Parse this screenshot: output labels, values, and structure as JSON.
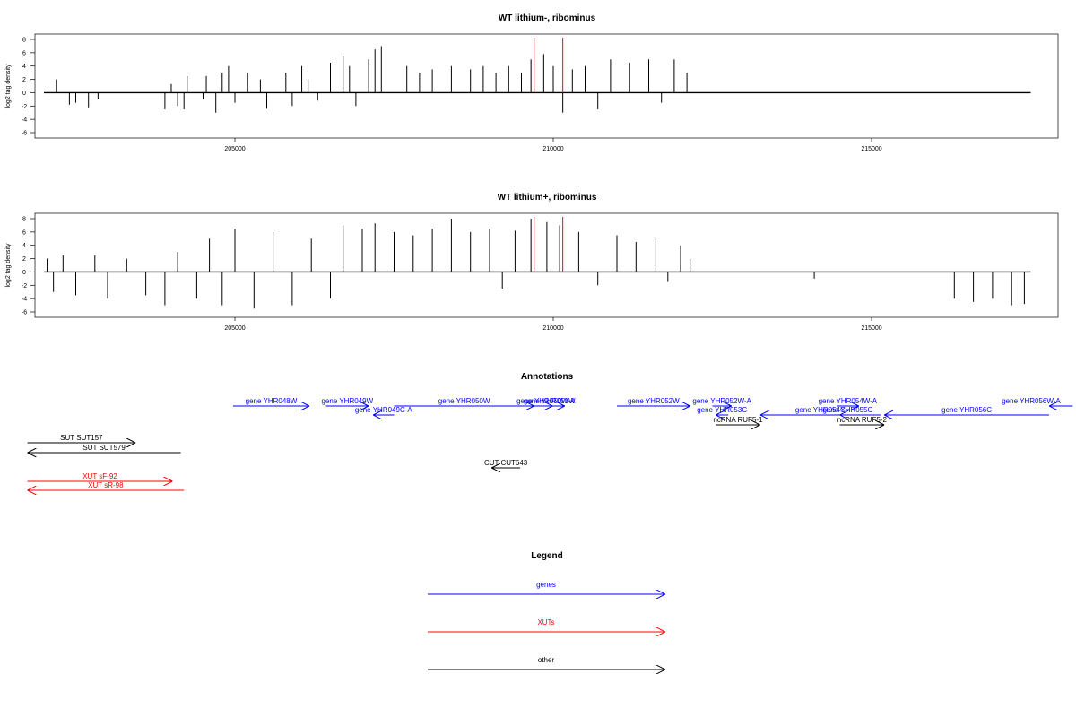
{
  "colors": {
    "gene": "#0000ff",
    "xut": "#ff0000",
    "other": "#000000",
    "highlight": "#ff0000"
  },
  "panel_top": {
    "title": "WT lithium-, ribominus",
    "ylabel": "log2 tag density",
    "yticks": [
      "8",
      "6",
      "4",
      "2",
      "0",
      "-2",
      "-4",
      "-6"
    ],
    "xticks": [
      "205000",
      "210000",
      "215000"
    ]
  },
  "panel_bottom": {
    "title": "WT lithium+, ribominus",
    "ylabel": "log2 tag density",
    "yticks": [
      "8",
      "6",
      "4",
      "2",
      "0",
      "-2",
      "-4",
      "-6"
    ],
    "xticks": [
      "205000",
      "210000",
      "215000"
    ]
  },
  "annotations": {
    "title": "Annotations",
    "items": [
      {
        "label": "gene YHR048W",
        "start": 204970,
        "end": 206170,
        "dir": "+",
        "type": "gene"
      },
      {
        "label": "gene YHR049W",
        "start": 206430,
        "end": 207100,
        "dir": "+",
        "type": "gene"
      },
      {
        "label": "gene YHR049C-A",
        "start": 207170,
        "end": 207500,
        "dir": "-",
        "type": "gene"
      },
      {
        "label": "gene YHR050W",
        "start": 207500,
        "end": 209700,
        "dir": "+",
        "type": "gene"
      },
      {
        "label": "gene YHR051W",
        "start": 209700,
        "end": 210180,
        "dir": "+",
        "type": "gene"
      },
      {
        "label": "gene YHR050W-A",
        "start": 209780,
        "end": 209990,
        "dir": "+",
        "type": "gene"
      },
      {
        "label": "gene YHR052W",
        "start": 211000,
        "end": 212150,
        "dir": "+",
        "type": "gene"
      },
      {
        "label": "gene YHR052W-A",
        "start": 212500,
        "end": 212800,
        "dir": "+",
        "type": "gene"
      },
      {
        "label": "gene YHR053C",
        "start": 212550,
        "end": 212750,
        "dir": "-",
        "type": "gene"
      },
      {
        "label": "ncRNA RUF5-1",
        "start": 212550,
        "end": 213250,
        "dir": "+",
        "type": "other"
      },
      {
        "label": "gene YHR054C",
        "start": 213250,
        "end": 215140,
        "dir": "-",
        "type": "gene"
      },
      {
        "label": "gene YHR054W-A",
        "start": 214450,
        "end": 214800,
        "dir": "+",
        "type": "gene"
      },
      {
        "label": "gene YHR055C",
        "start": 214500,
        "end": 214750,
        "dir": "-",
        "type": "gene"
      },
      {
        "label": "ncRNA RUF5-2",
        "start": 214500,
        "end": 215200,
        "dir": "+",
        "type": "other"
      },
      {
        "label": "gene YHR056C",
        "start": 215200,
        "end": 218860,
        "dir": "-",
        "type": "gene"
      },
      {
        "label": "gene YHR056W-A",
        "start": 218160,
        "end": 218860,
        "dir": "+",
        "type": "gene"
      },
      {
        "label": "SUT SUT157",
        "start": 201740,
        "end": 203440,
        "dir": "+",
        "type": "other"
      },
      {
        "label": "SUT SUT579",
        "start": 201740,
        "end": 204150,
        "dir": "-",
        "type": "other"
      },
      {
        "label": "CUT CUT643",
        "start": 209030,
        "end": 209480,
        "dir": "-",
        "type": "other"
      },
      {
        "label": "XUT sF-92",
        "start": 201740,
        "end": 204020,
        "dir": "+",
        "type": "xut"
      },
      {
        "label": "XUT sR-98",
        "start": 201740,
        "end": 204200,
        "dir": "-",
        "type": "xut"
      }
    ]
  },
  "legend": {
    "title": "Legend",
    "items": [
      {
        "label": "genes",
        "type": "gene"
      },
      {
        "label": "XUTs",
        "type": "xut"
      },
      {
        "label": "other",
        "type": "other"
      }
    ]
  },
  "chart_data": [
    {
      "type": "bar",
      "title": "WT lithium-, ribominus",
      "xlabel": "",
      "ylabel": "log2 tag density",
      "xlim": [
        201000,
        219000
      ],
      "ylim": [
        -6,
        8
      ],
      "xticks": [
        205000,
        210000,
        215000
      ],
      "yticks": [
        -6,
        -4,
        -2,
        0,
        2,
        4,
        6,
        8
      ],
      "grid": false,
      "baseline_range": [
        202000,
        217500
      ],
      "highlight_positions": [
        209700,
        210150
      ],
      "series": [
        {
          "name": "",
          "values": [
            [
              202200,
              2
            ],
            [
              202400,
              -1.8
            ],
            [
              202500,
              -1.5
            ],
            [
              202700,
              -2.2
            ],
            [
              202850,
              -1
            ],
            [
              203900,
              -2.5
            ],
            [
              204000,
              1.3
            ],
            [
              204100,
              -2
            ],
            [
              204200,
              -2.5
            ],
            [
              204250,
              2.5
            ],
            [
              204500,
              -1
            ],
            [
              204550,
              2.5
            ],
            [
              204700,
              -3
            ],
            [
              204800,
              3
            ],
            [
              204900,
              4
            ],
            [
              205000,
              -1.5
            ],
            [
              205200,
              3
            ],
            [
              205400,
              2
            ],
            [
              205500,
              -2.4
            ],
            [
              205800,
              3
            ],
            [
              205900,
              -2
            ],
            [
              206050,
              4
            ],
            [
              206150,
              2
            ],
            [
              206300,
              -1.2
            ],
            [
              206500,
              4.5
            ],
            [
              206700,
              5.5
            ],
            [
              206800,
              4
            ],
            [
              206900,
              -2
            ],
            [
              207100,
              5
            ],
            [
              207200,
              6.5
            ],
            [
              207300,
              7
            ],
            [
              207700,
              4
            ],
            [
              207900,
              3
            ],
            [
              208100,
              3.5
            ],
            [
              208400,
              4
            ],
            [
              208700,
              3.5
            ],
            [
              208900,
              4
            ],
            [
              209100,
              3
            ],
            [
              209300,
              4
            ],
            [
              209500,
              3
            ],
            [
              209650,
              5
            ],
            [
              209850,
              5.8
            ],
            [
              210000,
              4
            ],
            [
              210150,
              -3
            ],
            [
              210300,
              3.5
            ],
            [
              210500,
              4
            ],
            [
              210700,
              -2.5
            ],
            [
              210900,
              5
            ],
            [
              211200,
              4.5
            ],
            [
              211500,
              5
            ],
            [
              211700,
              -1.5
            ],
            [
              211900,
              5
            ],
            [
              212100,
              3
            ]
          ]
        }
      ]
    },
    {
      "type": "bar",
      "title": "WT lithium+, ribominus",
      "xlabel": "",
      "ylabel": "log2 tag density",
      "xlim": [
        201000,
        219000
      ],
      "ylim": [
        -6,
        8
      ],
      "xticks": [
        205000,
        210000,
        215000
      ],
      "yticks": [
        -6,
        -4,
        -2,
        0,
        2,
        4,
        6,
        8
      ],
      "grid": false,
      "baseline_range": [
        202000,
        217500
      ],
      "highlight_positions": [
        209700,
        210150
      ],
      "series": [
        {
          "name": "",
          "values": [
            [
              202050,
              2
            ],
            [
              202150,
              -3
            ],
            [
              202300,
              2.5
            ],
            [
              202500,
              -3.5
            ],
            [
              202800,
              2.5
            ],
            [
              203000,
              -4
            ],
            [
              203300,
              2
            ],
            [
              203600,
              -3.5
            ],
            [
              203900,
              -5
            ],
            [
              204100,
              3
            ],
            [
              204400,
              -4
            ],
            [
              204600,
              5
            ],
            [
              204800,
              -5
            ],
            [
              205000,
              6.5
            ],
            [
              205300,
              -5.5
            ],
            [
              205600,
              6
            ],
            [
              205900,
              -5
            ],
            [
              206200,
              5
            ],
            [
              206500,
              -4
            ],
            [
              206700,
              7
            ],
            [
              207000,
              6.5
            ],
            [
              207200,
              7.3
            ],
            [
              207500,
              6
            ],
            [
              207800,
              5.5
            ],
            [
              208100,
              6.5
            ],
            [
              208400,
              8
            ],
            [
              208700,
              6
            ],
            [
              209000,
              6.5
            ],
            [
              209200,
              -2.5
            ],
            [
              209400,
              6.2
            ],
            [
              209650,
              8
            ],
            [
              209900,
              7.5
            ],
            [
              210100,
              7
            ],
            [
              210400,
              6
            ],
            [
              210700,
              -2
            ],
            [
              211000,
              5.5
            ],
            [
              211300,
              4.5
            ],
            [
              211600,
              5
            ],
            [
              211800,
              -1.5
            ],
            [
              212000,
              4
            ],
            [
              212150,
              2
            ],
            [
              214100,
              -1
            ],
            [
              216300,
              -4
            ],
            [
              216600,
              -4.5
            ],
            [
              216900,
              -4
            ],
            [
              217200,
              -5
            ],
            [
              217400,
              -4.8
            ]
          ]
        }
      ]
    }
  ]
}
